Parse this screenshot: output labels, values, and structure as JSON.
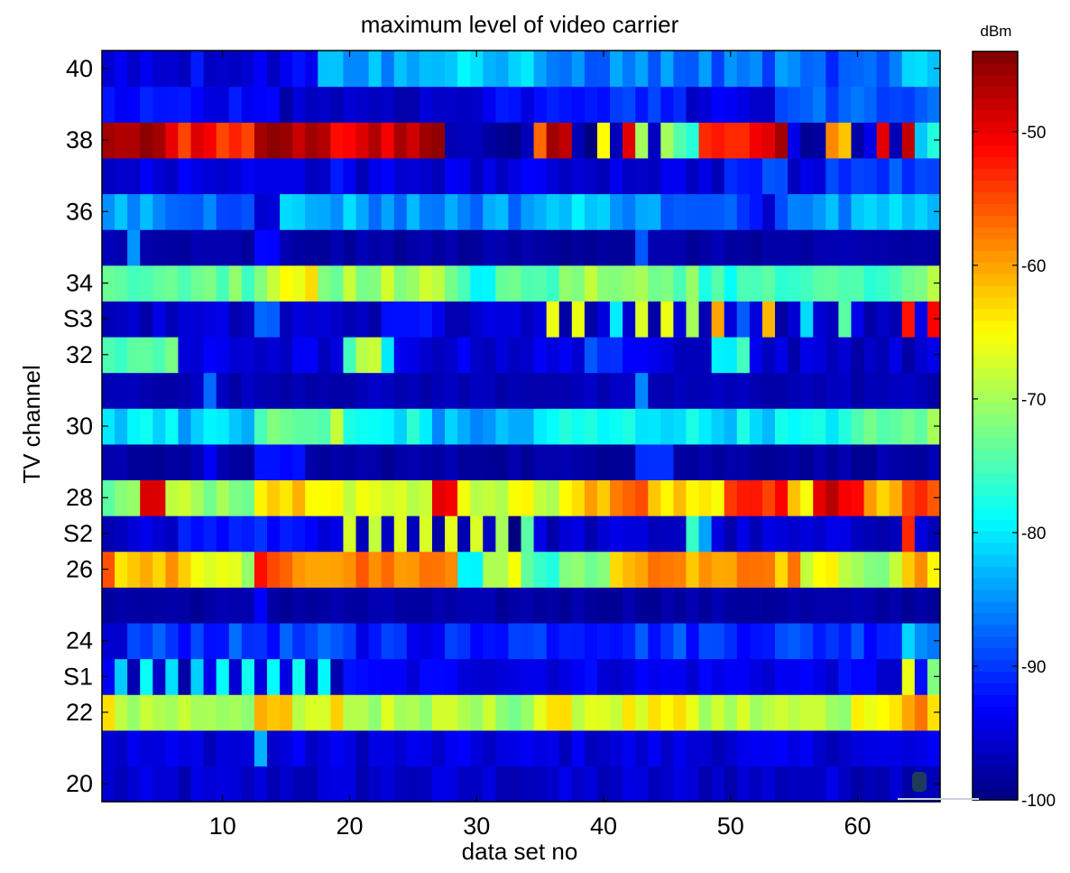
{
  "chart_data": {
    "type": "heatmap",
    "title": "maximum level of video carrier",
    "xlabel": "data set no",
    "ylabel": "TV channel",
    "colorbar_label": "dBm",
    "colormap": "jet",
    "clim": [
      -100,
      -44
    ],
    "colorbar_ticks": [
      -50,
      -60,
      -70,
      -80,
      -90,
      -100
    ],
    "xlim": [
      0.5,
      66.5
    ],
    "x_ticks": [
      10,
      20,
      30,
      40,
      50,
      60
    ],
    "rows": [
      "20",
      "21",
      "22",
      "S1",
      "24",
      "25",
      "26",
      "S2",
      "28",
      "29",
      "30",
      "31",
      "32",
      "S3",
      "34",
      "35",
      "36",
      "37",
      "38",
      "39",
      "40"
    ],
    "y_tick_labels": [
      "20",
      "22",
      "S1",
      "24",
      "26",
      "S2",
      "28",
      "30",
      "32",
      "S3",
      "34",
      "36",
      "38",
      "40"
    ],
    "row_profiles": {
      "20": {
        "base": -96,
        "spread": 2,
        "segments": []
      },
      "21": {
        "base": -95,
        "spread": 2,
        "segments": [
          [
            13,
            13,
            -84
          ]
        ]
      },
      "22": {
        "base": -69,
        "spread": 3,
        "segments": [
          [
            1,
            1,
            -64
          ],
          [
            13,
            15,
            -61
          ],
          [
            19,
            19,
            -62
          ],
          [
            25,
            34,
            -70
          ],
          [
            35,
            46,
            -66
          ],
          [
            60,
            63,
            -66
          ],
          [
            64,
            65,
            -59
          ],
          [
            66,
            66,
            -64
          ]
        ]
      },
      "S1": {
        "base": -94,
        "spread": 2,
        "segments": [
          [
            12,
            20,
            -93
          ],
          [
            62,
            63,
            -95
          ]
        ],
        "alternating": [
          [
            2,
            19,
            -80,
            -96
          ]
        ],
        "points": [
          [
            64,
            -66
          ],
          [
            66,
            -72
          ]
        ]
      },
      "24": {
        "base": -90,
        "spread": 3,
        "segments": [
          [
            1,
            2,
            -93
          ],
          [
            20,
            30,
            -92
          ],
          [
            64,
            66,
            -84
          ]
        ]
      },
      "25": {
        "base": -98,
        "spread": 1,
        "segments": [
          [
            13,
            13,
            -93
          ]
        ]
      },
      "26": {
        "base": -62,
        "spread": 3,
        "segments": [
          [
            1,
            1,
            -55
          ],
          [
            2,
            2,
            -66
          ],
          [
            4,
            7,
            -61
          ],
          [
            8,
            12,
            -68
          ],
          [
            13,
            13,
            -54
          ],
          [
            14,
            28,
            -58
          ],
          [
            29,
            30,
            -79
          ],
          [
            31,
            33,
            -68
          ],
          [
            34,
            36,
            -75
          ],
          [
            37,
            40,
            -73
          ],
          [
            41,
            55,
            -60
          ],
          [
            56,
            58,
            -66
          ],
          [
            59,
            63,
            -71
          ],
          [
            64,
            64,
            -63
          ],
          [
            65,
            65,
            -60
          ],
          [
            66,
            66,
            -66
          ]
        ]
      },
      "S2": {
        "base": -96,
        "spread": 2,
        "segments": [
          [
            7,
            17,
            -92
          ],
          [
            63,
            63,
            -95
          ],
          [
            64,
            64,
            -55
          ]
        ],
        "alternating": [
          [
            20,
            33,
            -68,
            -98
          ]
        ],
        "points": [
          [
            34,
            -74
          ],
          [
            47,
            -76
          ],
          [
            48,
            -84
          ]
        ]
      },
      "28": {
        "base": -65,
        "spread": 3,
        "segments": [
          [
            1,
            3,
            -72
          ],
          [
            4,
            5,
            -50
          ],
          [
            6,
            12,
            -70
          ],
          [
            13,
            19,
            -62
          ],
          [
            20,
            22,
            -66
          ],
          [
            23,
            26,
            -69
          ],
          [
            27,
            28,
            -48
          ],
          [
            29,
            36,
            -67
          ],
          [
            37,
            40,
            -62
          ],
          [
            41,
            43,
            -56
          ],
          [
            44,
            49,
            -64
          ],
          [
            50,
            54,
            -52
          ],
          [
            55,
            56,
            -64
          ],
          [
            57,
            60,
            -50
          ],
          [
            61,
            63,
            -61
          ],
          [
            64,
            66,
            -54
          ]
        ]
      },
      "29": {
        "base": -98,
        "spread": 1,
        "segments": [
          [
            9,
            9,
            -94
          ],
          [
            13,
            16,
            -93
          ],
          [
            43,
            45,
            -91
          ]
        ]
      },
      "30": {
        "base": -79,
        "spread": 3,
        "segments": [
          [
            1,
            3,
            -80
          ],
          [
            7,
            12,
            -82
          ],
          [
            13,
            18,
            -74
          ],
          [
            19,
            19,
            -69
          ],
          [
            20,
            26,
            -79
          ],
          [
            27,
            34,
            -84
          ],
          [
            35,
            45,
            -79
          ],
          [
            46,
            58,
            -80
          ],
          [
            59,
            63,
            -75
          ],
          [
            64,
            66,
            -72
          ]
        ]
      },
      "31": {
        "base": -97,
        "spread": 1,
        "segments": [
          [
            9,
            9,
            -87
          ],
          [
            43,
            43,
            -85
          ]
        ]
      },
      "32": {
        "base": -95,
        "spread": 2,
        "segments": [
          [
            1,
            6,
            -74
          ],
          [
            20,
            20,
            -74
          ],
          [
            21,
            22,
            -68
          ],
          [
            23,
            23,
            -80
          ],
          [
            39,
            41,
            -89
          ],
          [
            49,
            50,
            -80
          ],
          [
            51,
            51,
            -76
          ],
          [
            55,
            66,
            -96
          ]
        ]
      },
      "S3": {
        "base": -96,
        "spread": 2,
        "segments": [
          [
            13,
            14,
            -88
          ],
          [
            23,
            27,
            -92
          ],
          [
            63,
            63,
            -96
          ]
        ],
        "points": [
          [
            36,
            -66
          ],
          [
            38,
            -66
          ],
          [
            41,
            -80
          ],
          [
            43,
            -67
          ],
          [
            45,
            -66
          ],
          [
            47,
            -70
          ],
          [
            49,
            -60
          ],
          [
            51,
            -88
          ],
          [
            53,
            -61
          ],
          [
            56,
            -81
          ],
          [
            59,
            -74
          ],
          [
            64,
            -52
          ],
          [
            66,
            -51
          ]
        ]
      },
      "34": {
        "base": -73,
        "spread": 3,
        "segments": [
          [
            13,
            13,
            -70
          ],
          [
            14,
            17,
            -66
          ],
          [
            18,
            19,
            -71
          ],
          [
            20,
            28,
            -70
          ],
          [
            29,
            31,
            -77
          ],
          [
            32,
            37,
            -74
          ],
          [
            38,
            39,
            -70
          ],
          [
            42,
            47,
            -72
          ],
          [
            48,
            63,
            -76
          ],
          [
            64,
            66,
            -70
          ]
        ]
      },
      "35": {
        "base": -98,
        "spread": 1,
        "segments": [
          [
            1,
            2,
            -97
          ],
          [
            3,
            3,
            -85
          ],
          [
            13,
            14,
            -93
          ],
          [
            43,
            43,
            -88
          ]
        ]
      },
      "36": {
        "base": -85,
        "spread": 3,
        "segments": [
          [
            1,
            3,
            -84
          ],
          [
            5,
            12,
            -87
          ],
          [
            13,
            14,
            -93
          ],
          [
            15,
            21,
            -83
          ],
          [
            22,
            34,
            -85
          ],
          [
            35,
            41,
            -82
          ],
          [
            42,
            50,
            -86
          ],
          [
            51,
            53,
            -93
          ],
          [
            54,
            57,
            -87
          ],
          [
            58,
            61,
            -84
          ],
          [
            62,
            63,
            -82
          ],
          [
            64,
            66,
            -84
          ]
        ]
      },
      "37": {
        "base": -95,
        "spread": 2,
        "segments": [
          [
            19,
            19,
            -92
          ],
          [
            21,
            21,
            -98
          ],
          [
            50,
            54,
            -90
          ],
          [
            58,
            66,
            -89
          ]
        ]
      },
      "38": {
        "base": -48,
        "spread": 3,
        "segments": [
          [
            1,
            4,
            -47
          ],
          [
            6,
            12,
            -52
          ],
          [
            13,
            18,
            -46
          ],
          [
            19,
            23,
            -49
          ],
          [
            24,
            27,
            -47
          ],
          [
            28,
            34,
            -97
          ],
          [
            35,
            35,
            -55
          ],
          [
            36,
            37,
            -45
          ],
          [
            38,
            39,
            -97
          ],
          [
            42,
            42,
            -50
          ],
          [
            44,
            44,
            -97
          ],
          [
            46,
            47,
            -74
          ],
          [
            48,
            53,
            -52
          ],
          [
            55,
            57,
            -97
          ],
          [
            58,
            59,
            -60
          ],
          [
            60,
            61,
            -97
          ],
          [
            62,
            62,
            -50
          ],
          [
            64,
            64,
            -49
          ],
          [
            66,
            66,
            -80
          ]
        ],
        "points": [
          [
            40,
            -65
          ],
          [
            41,
            -97
          ],
          [
            43,
            -70
          ],
          [
            45,
            -70
          ],
          [
            54,
            -46
          ],
          [
            63,
            -97
          ],
          [
            65,
            -82
          ]
        ]
      },
      "39": {
        "base": -91,
        "spread": 2,
        "segments": [
          [
            1,
            14,
            -93
          ],
          [
            15,
            30,
            -96
          ],
          [
            31,
            35,
            -93
          ],
          [
            36,
            46,
            -91
          ],
          [
            47,
            53,
            -95
          ],
          [
            54,
            66,
            -88
          ]
        ]
      },
      "40": {
        "base": -90,
        "spread": 3,
        "segments": [
          [
            1,
            1,
            -93
          ],
          [
            2,
            17,
            -94
          ],
          [
            18,
            19,
            -80
          ],
          [
            20,
            26,
            -84
          ],
          [
            27,
            30,
            -80
          ],
          [
            31,
            34,
            -83
          ],
          [
            35,
            45,
            -86
          ],
          [
            46,
            55,
            -87
          ],
          [
            56,
            63,
            -89
          ],
          [
            64,
            66,
            -82
          ]
        ]
      }
    }
  }
}
